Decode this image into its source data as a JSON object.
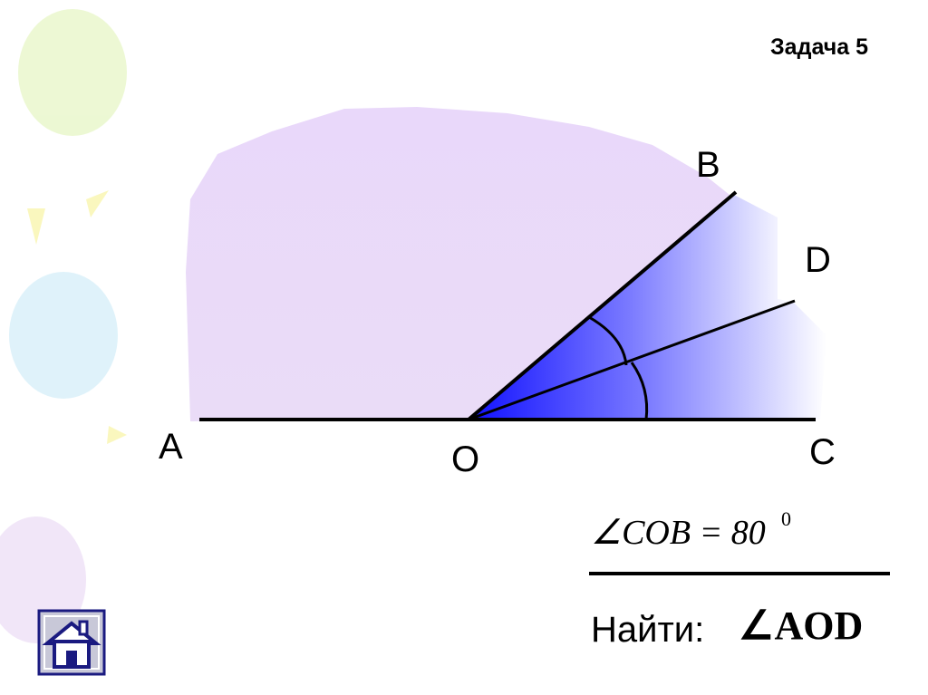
{
  "header": {
    "title": "Задача 5"
  },
  "figure": {
    "points": {
      "A": "A",
      "B": "B",
      "C": "C",
      "D": "D",
      "O": "O"
    }
  },
  "given": {
    "text": "∠COB = 80",
    "superscript": "0"
  },
  "find": {
    "label": "Найти:",
    "angle": "∠AOD"
  }
}
